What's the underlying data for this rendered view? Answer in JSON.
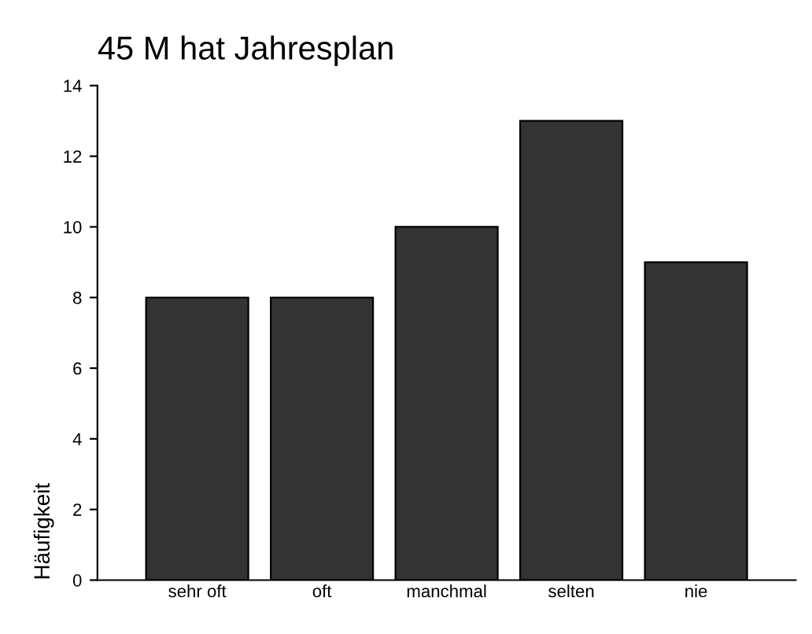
{
  "chart_data": {
    "type": "bar",
    "title": "45 M hat Jahresplan",
    "ylabel": "Häufigkeit",
    "categories": [
      "sehr oft",
      "oft",
      "manchmal",
      "selten",
      "nie"
    ],
    "values": [
      8,
      8,
      10,
      13,
      9
    ],
    "color": "#333333",
    "ylim": [
      0,
      14
    ],
    "yticks": [
      0,
      2,
      4,
      6,
      8,
      10,
      12,
      14
    ],
    "grid": false,
    "legend": false
  }
}
